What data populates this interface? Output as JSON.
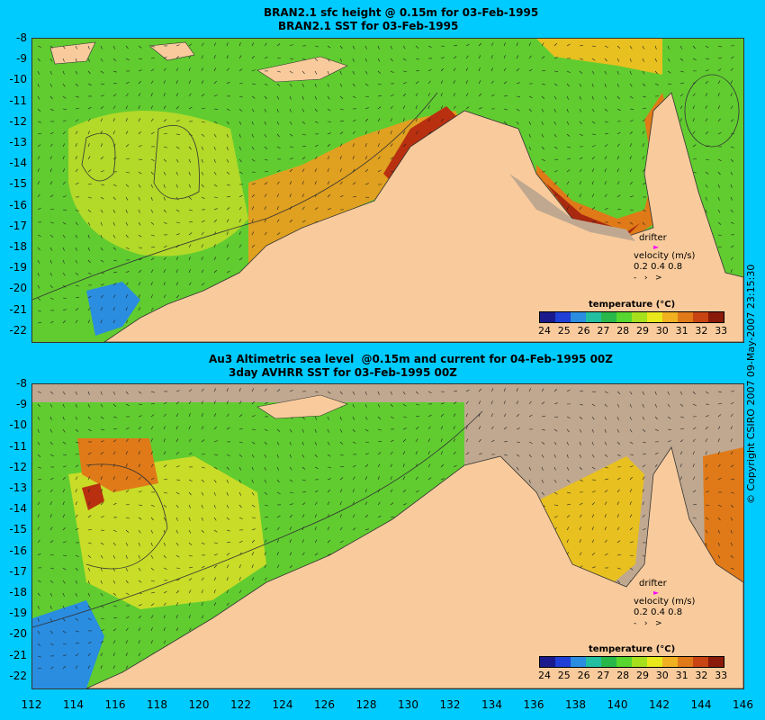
{
  "top": {
    "title_line1": "BRAN2.1 sfc height @ 0.15m for 03-Feb-1995",
    "title_line2": "BRAN2.1 SST for 03-Feb-1995"
  },
  "bottom": {
    "title_line1": "Au3 Altimetric sea level  @0.15m and current for 04-Feb-1995 00Z",
    "title_line2": "3day AVHRR SST for 03-Feb-1995 00Z"
  },
  "y_ticks": [
    "-8",
    "-9",
    "-10",
    "-11",
    "-12",
    "-13",
    "-14",
    "-15",
    "-16",
    "-17",
    "-18",
    "-19",
    "-20",
    "-21",
    "-22"
  ],
  "x_ticks": [
    "112",
    "114",
    "116",
    "118",
    "120",
    "122",
    "124",
    "126",
    "128",
    "130",
    "132",
    "134",
    "136",
    "138",
    "140",
    "142",
    "144",
    "146"
  ],
  "drifter": {
    "label": "drifter",
    "velocity_label": "velocity (m/s)",
    "scale": "0.2 0.4 0.8"
  },
  "colorbar": {
    "title": "temperature (°C)",
    "ticks": [
      "24",
      "25",
      "26",
      "27",
      "28",
      "29",
      "30",
      "31",
      "32",
      "33"
    ],
    "colors": [
      "#1a1a8c",
      "#1f3fd6",
      "#2a8de0",
      "#22c0a0",
      "#28b84a",
      "#56d62e",
      "#a6e01c",
      "#e8e81a",
      "#f0b020",
      "#e07a18",
      "#c84412",
      "#8a1a0a"
    ]
  },
  "colors": {
    "land": "#f9cb9c",
    "background": "#00cbff",
    "sea_warm": "#e0a020",
    "sea_mid": "#60cc30",
    "sea_cool": "#2a8de0",
    "cloud_gray": "#c0a890",
    "drifter_marker": "#ff00ff"
  },
  "copyright": "© Copyright CSIRO 2007  09-May-2007 23:15:30"
}
